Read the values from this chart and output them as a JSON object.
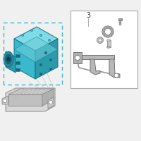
{
  "bg_color": "#f0f0f0",
  "hu_fill_top": "#5bc8d8",
  "hu_fill_front": "#3ab8cc",
  "hu_fill_right": "#2a9aac",
  "hu_fill_left": "#4ab0c0",
  "hu_outline": "#1a7080",
  "motor_fill": "#2888a0",
  "motor_dark": "#1a6878",
  "motor_ring": "#5bc8d8",
  "ecu_fill": "#d8d8d8",
  "ecu_outline": "#888888",
  "ecu_hatch": "#bbbbbb",
  "bracket_fill": "#b8b8b8",
  "bracket_outline": "#666666",
  "box_line": "#aaaaaa",
  "box_fill": "#ffffff",
  "dashed_color": "#3ab8cc",
  "screw_color": "#999999",
  "label_color": "#333333",
  "fig_width": 2.0,
  "fig_height": 2.0,
  "dpi": 100
}
